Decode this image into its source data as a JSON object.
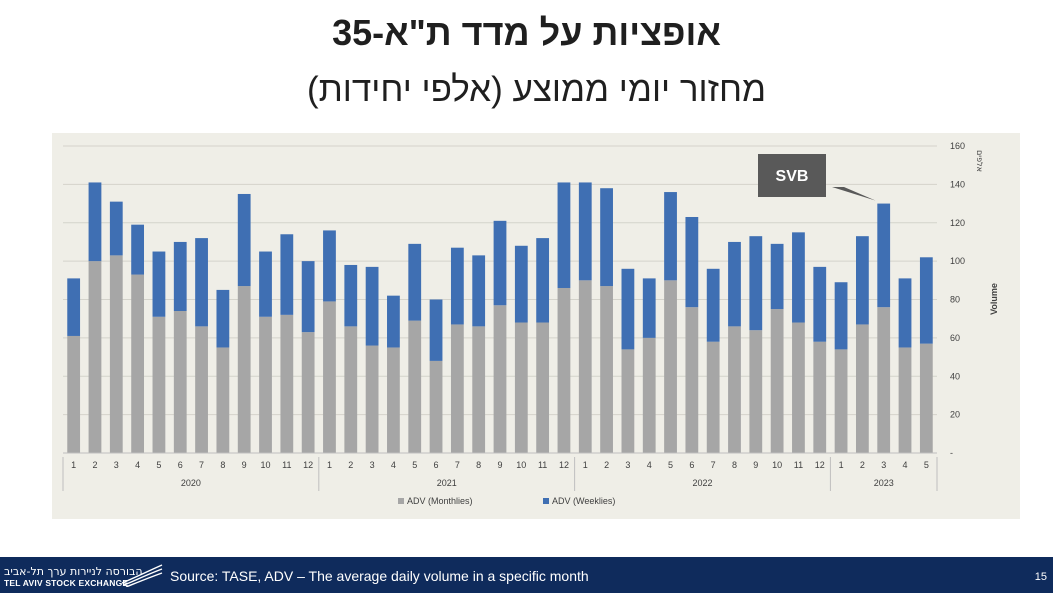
{
  "header": {
    "title": "אופציות על מדד ת\"א-35",
    "subtitle": "מחזור יומי ממוצע (אלפי יחידות)"
  },
  "footer": {
    "logo_hebrew": "הבורסה לניירות ערך תל-אביב",
    "logo_english": "TEL AVIV STOCK EXCHANGE",
    "source": "Source: TASE, ADV – The average daily volume in a specific month",
    "page_number": "15"
  },
  "colors": {
    "monthly": "#a6a6a6",
    "weekly": "#3f6fb3",
    "chart_background": "#efeee7",
    "callout": "#595959",
    "footer": "#0f2b5c"
  },
  "chart_data": {
    "type": "bar",
    "stacked": true,
    "y_axis_label": "Volume",
    "y_axis_unit_label": "אלפים",
    "ylim": [
      0,
      160
    ],
    "y_ticks": [
      "-",
      "20",
      "40",
      "60",
      "80",
      "100",
      "120",
      "140",
      "160"
    ],
    "grid": true,
    "legend_position": "bottom",
    "categories": [
      "1",
      "2",
      "3",
      "4",
      "5",
      "6",
      "7",
      "8",
      "9",
      "10",
      "11",
      "12",
      "1",
      "2",
      "3",
      "4",
      "5",
      "6",
      "7",
      "8",
      "9",
      "10",
      "11",
      "12",
      "1",
      "2",
      "3",
      "4",
      "5",
      "6",
      "7",
      "8",
      "9",
      "10",
      "11",
      "12",
      "1",
      "2",
      "3",
      "4",
      "5"
    ],
    "year_groups": [
      {
        "label": "2020",
        "count": 12
      },
      {
        "label": "2021",
        "count": 12
      },
      {
        "label": "2022",
        "count": 12
      },
      {
        "label": "2023",
        "count": 5
      }
    ],
    "series": [
      {
        "name": "ADV (Monthlies)",
        "values": [
          61,
          100,
          103,
          93,
          71,
          74,
          66,
          55,
          87,
          71,
          72,
          63,
          79,
          66,
          56,
          55,
          69,
          48,
          67,
          66,
          77,
          68,
          68,
          86,
          90,
          87,
          54,
          60,
          90,
          76,
          58,
          66,
          64,
          75,
          68,
          58,
          54,
          67,
          76,
          55,
          57
        ]
      },
      {
        "name": "ADV (Weeklies)",
        "values": [
          30,
          41,
          28,
          26,
          34,
          36,
          46,
          30,
          48,
          34,
          42,
          37,
          37,
          32,
          41,
          27,
          40,
          32,
          40,
          37,
          44,
          40,
          44,
          55,
          51,
          51,
          42,
          31,
          46,
          47,
          38,
          44,
          49,
          34,
          47,
          39,
          35,
          46,
          54,
          36,
          45
        ]
      }
    ],
    "annotations": [
      {
        "text": "SVB",
        "category_index": 38
      }
    ]
  }
}
